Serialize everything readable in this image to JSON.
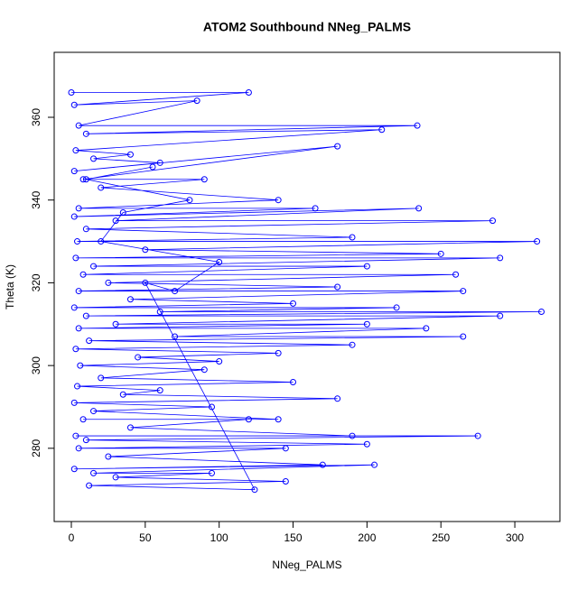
{
  "chart_data": {
    "type": "line",
    "title": "ATOM2 Southbound NNeg_PALMS",
    "xlabel": "NNeg_PALMS",
    "ylabel": "Theta (K)",
    "color": "#0000ff",
    "marker": "circle",
    "x": [
      0,
      120,
      2,
      85,
      5,
      234,
      10,
      210,
      3,
      40,
      15,
      60,
      2,
      180,
      8,
      90,
      20,
      140,
      5,
      165,
      2,
      235,
      30,
      285,
      10,
      190,
      4,
      315,
      50,
      250,
      3,
      290,
      15,
      200,
      8,
      260,
      25,
      180,
      5,
      265,
      40,
      150,
      2,
      220,
      60,
      318,
      10,
      290,
      30,
      200,
      5,
      240,
      70,
      265,
      12,
      190,
      3,
      140,
      45,
      100,
      6,
      90,
      20,
      150,
      4,
      60,
      35,
      180,
      2,
      95,
      15,
      140,
      8,
      120,
      40,
      190,
      3,
      275,
      10,
      200,
      5,
      145,
      25,
      170,
      2,
      205,
      15,
      95,
      30,
      145,
      12,
      124,
      50,
      70,
      100,
      20,
      35,
      80,
      10,
      55
    ],
    "values": [
      366,
      366,
      363,
      364,
      358,
      358,
      356,
      357,
      352,
      351,
      350,
      349,
      347,
      353,
      345,
      345,
      343,
      340,
      338,
      338,
      336,
      338,
      335,
      335,
      333,
      331,
      330,
      330,
      328,
      327,
      326,
      326,
      324,
      324,
      322,
      322,
      320,
      319,
      318,
      318,
      316,
      315,
      314,
      314,
      313,
      313,
      312,
      312,
      310,
      310,
      309,
      309,
      307,
      307,
      306,
      305,
      304,
      303,
      302,
      301,
      300,
      299,
      297,
      296,
      295,
      294,
      293,
      292,
      291,
      290,
      289,
      287,
      287,
      287,
      285,
      283,
      283,
      283,
      282,
      281,
      280,
      280,
      278,
      276,
      275,
      276,
      274,
      274,
      273,
      272,
      271,
      270,
      320,
      318,
      325,
      330,
      337,
      340,
      345,
      348
    ],
    "xlim": [
      -11.6,
      330.5
    ],
    "ylim": [
      262.3,
      375.7
    ],
    "xticks": [
      0,
      50,
      100,
      150,
      200,
      250,
      300
    ],
    "yticks": [
      280,
      300,
      320,
      340,
      360
    ]
  }
}
